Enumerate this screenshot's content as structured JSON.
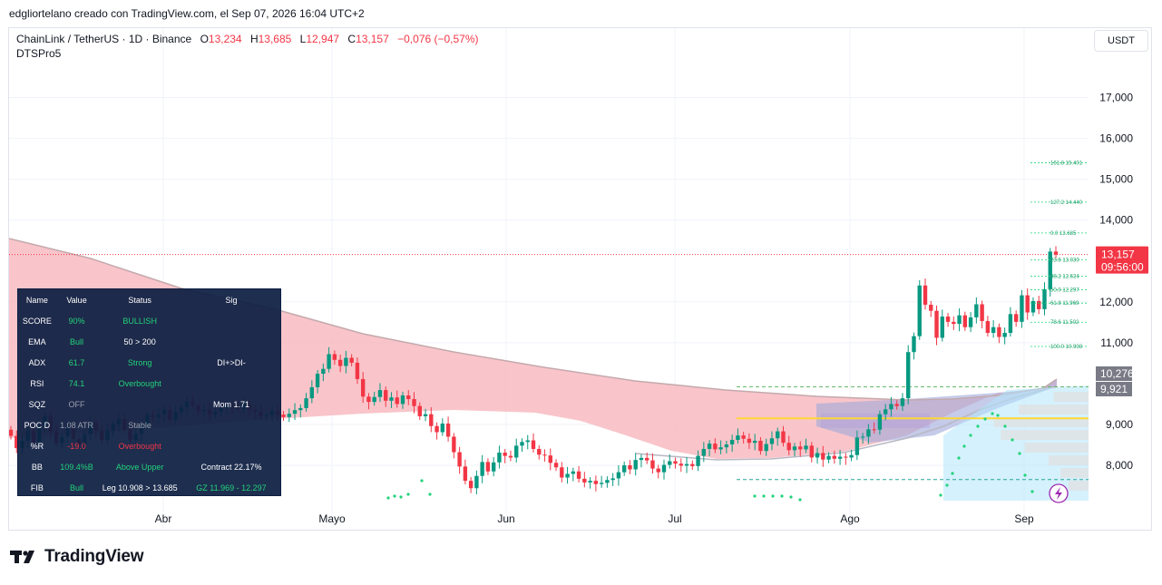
{
  "caption": "edgliortelano creado con TradingView.com, el Sep 07, 2026 16:04 UTC+2",
  "header": {
    "symbol": "ChainLink / TetherUS · 1D · Binance",
    "o_label": "O",
    "o_value": "13,234",
    "h_label": "H",
    "h_value": "13,685",
    "l_label": "L",
    "l_value": "12,947",
    "c_label": "C",
    "c_value": "13,157",
    "change": "−0,076 (−0,57%)",
    "indicator": "DTSPro5"
  },
  "currency_button": "USDT",
  "colors": {
    "up": "#089981",
    "down": "#f23645",
    "cloud_pink": "#f7b2b8",
    "dashboard_bg": "#0d1e42",
    "accent_green": "#22d37a"
  },
  "chart_data": {
    "type": "candlestick",
    "y_range": [
      7100,
      18000
    ],
    "y_ticks": [
      "17,000",
      "16,000",
      "15,000",
      "14,000",
      "12,000",
      "11,000",
      "9,000",
      "8,000"
    ],
    "y_tick_values": [
      17000,
      16000,
      15000,
      14000,
      12000,
      11000,
      9000,
      8000
    ],
    "x_labels": [
      "Abr",
      "Mayo",
      "Jun",
      "Jul",
      "Ago",
      "Sep"
    ],
    "price_badge": {
      "value": "13,157",
      "countdown": "09:56:00"
    },
    "level_badges": [
      "10,276",
      "9,921"
    ],
    "level_values": [
      10276,
      9921
    ],
    "fib_levels": [
      {
        "label": "161.8 15.401",
        "value": 15401
      },
      {
        "label": "127.2 14.440",
        "value": 14440
      },
      {
        "label": "0.0 13.685",
        "value": 13685
      },
      {
        "label": "23.6 13.030",
        "value": 13030
      },
      {
        "label": "38.2 12.624",
        "value": 12624
      },
      {
        "label": "50.0 12.297",
        "value": 12297
      },
      {
        "label": "61.8 11.969",
        "value": 11969
      },
      {
        "label": "78.6 11.502",
        "value": 11502
      },
      {
        "label": "100.0 10.908",
        "value": 10908
      }
    ],
    "closes": [
      8720,
      8420,
      8600,
      8850,
      8560,
      8960,
      9200,
      8830,
      8540,
      8700,
      8900,
      8640,
      8500,
      8760,
      9050,
      8850,
      8620,
      8850,
      9010,
      9130,
      8870,
      8620,
      8770,
      8970,
      9220,
      9180,
      9250,
      9360,
      9120,
      9300,
      9420,
      9560,
      9470,
      9320,
      9360,
      9240,
      9310,
      9400,
      9470,
      9430,
      9380,
      9500,
      9360,
      9310,
      9200,
      9230,
      9330,
      9240,
      9180,
      9260,
      9350,
      9400,
      9640,
      9910,
      10240,
      10360,
      10720,
      10580,
      10430,
      10630,
      10510,
      10110,
      9680,
      9550,
      9670,
      9840,
      9580,
      9660,
      9500,
      9710,
      9620,
      9450,
      9200,
      9250,
      8960,
      8810,
      9020,
      8700,
      8320,
      7970,
      7620,
      7440,
      7740,
      8080,
      7850,
      8070,
      8310,
      8230,
      8190,
      8480,
      8570,
      8610,
      8400,
      8260,
      8240,
      8060,
      7950,
      7700,
      7790,
      7850,
      7670,
      7580,
      7620,
      7540,
      7570,
      7640,
      7680,
      7830,
      8000,
      7900,
      8130,
      8180,
      8120,
      7920,
      7830,
      8010,
      8100,
      8040,
      7990,
      8030,
      7980,
      8230,
      8400,
      8530,
      8390,
      8440,
      8510,
      8620,
      8730,
      8650,
      8550,
      8600,
      8350,
      8520,
      8660,
      8830,
      8550,
      8370,
      8460,
      8390,
      8480,
      8190,
      8300,
      8140,
      8230,
      8160,
      8210,
      8190,
      8250,
      8680,
      8700,
      8880,
      8870,
      9250,
      9370,
      9500,
      9450,
      9640,
      10770,
      11160,
      12400,
      11930,
      11780,
      11120,
      11640,
      11510,
      11460,
      11670,
      11380,
      11620,
      11940,
      11530,
      11240,
      11380,
      11140,
      11240,
      11700,
      11510,
      12160,
      11740,
      12020,
      11820,
      12310,
      13230,
      13157
    ],
    "dashboard": {
      "headers": [
        "Name",
        "Value",
        "Status",
        "Sig"
      ],
      "rows": [
        [
          "SCORE",
          "90%",
          "BULLISH",
          ""
        ],
        [
          "EMA",
          "Bull",
          "50 > 200",
          ""
        ],
        [
          "ADX",
          "61.7",
          "Strong",
          "DI+>DI-"
        ],
        [
          "RSI",
          "74.1",
          "Overbought",
          ""
        ],
        [
          "SQZ",
          "OFF",
          "",
          "Mom 1.71"
        ],
        [
          "POC D",
          "1.08 ATR",
          "Stable",
          ""
        ],
        [
          "%R",
          "-19.0",
          "Overbought",
          ""
        ],
        [
          "BB",
          "109.4%B",
          "Above Upper",
          "Contract 22.17%"
        ],
        [
          "FIB",
          "Bull",
          "Leg 10.908 > 13.685",
          "GZ 11.969 - 12.297"
        ]
      ]
    }
  },
  "footer": {
    "logo_text": "TradingView"
  }
}
